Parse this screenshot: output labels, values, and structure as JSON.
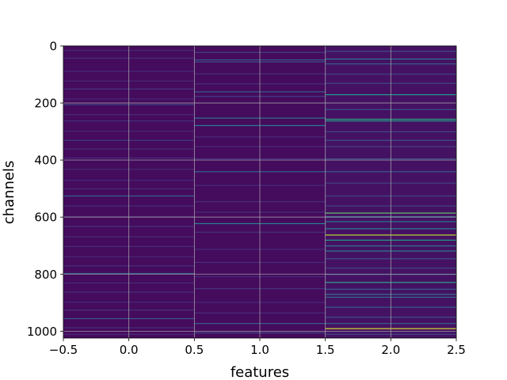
{
  "chart_data": {
    "type": "heatmap",
    "title": "",
    "xlabel": "features",
    "ylabel": "channels",
    "xlim": [
      -0.5,
      2.5
    ],
    "ylim": [
      1024,
      0
    ],
    "xticks": [
      "−0.5",
      "0.0",
      "0.5",
      "1.0",
      "1.5",
      "2.0",
      "2.5"
    ],
    "xtick_values": [
      -0.5,
      0.0,
      0.5,
      1.0,
      1.5,
      2.0,
      2.5
    ],
    "yticks": [
      "0",
      "200",
      "400",
      "600",
      "800",
      "1000"
    ],
    "ytick_values": [
      0,
      200,
      400,
      600,
      800,
      1000
    ],
    "grid": true,
    "colormap": "viridis",
    "background_color": "#440154",
    "columns": [
      {
        "feature": 0,
        "base": 0.03,
        "bright_rows": [
          {
            "channel": 15,
            "value": 0.12
          },
          {
            "channel": 42,
            "value": 0.15
          },
          {
            "channel": 88,
            "value": 0.13
          },
          {
            "channel": 122,
            "value": 0.12
          },
          {
            "channel": 150,
            "value": 0.16
          },
          {
            "channel": 185,
            "value": 0.12
          },
          {
            "channel": 205,
            "value": 0.22
          },
          {
            "channel": 240,
            "value": 0.13
          },
          {
            "channel": 262,
            "value": 0.15
          },
          {
            "channel": 298,
            "value": 0.12
          },
          {
            "channel": 330,
            "value": 0.18
          },
          {
            "channel": 360,
            "value": 0.13
          },
          {
            "channel": 392,
            "value": 0.14
          },
          {
            "channel": 432,
            "value": 0.12
          },
          {
            "channel": 470,
            "value": 0.13
          },
          {
            "channel": 500,
            "value": 0.13
          },
          {
            "channel": 525,
            "value": 0.32
          },
          {
            "channel": 560,
            "value": 0.13
          },
          {
            "channel": 598,
            "value": 0.14
          },
          {
            "channel": 632,
            "value": 0.16
          },
          {
            "channel": 668,
            "value": 0.13
          },
          {
            "channel": 702,
            "value": 0.14
          },
          {
            "channel": 738,
            "value": 0.12
          },
          {
            "channel": 770,
            "value": 0.15
          },
          {
            "channel": 797,
            "value": 0.38
          },
          {
            "channel": 830,
            "value": 0.13
          },
          {
            "channel": 862,
            "value": 0.15
          },
          {
            "channel": 897,
            "value": 0.13
          },
          {
            "channel": 925,
            "value": 0.16
          },
          {
            "channel": 955,
            "value": 0.28
          },
          {
            "channel": 987,
            "value": 0.14
          },
          {
            "channel": 1010,
            "value": 0.12
          }
        ]
      },
      {
        "feature": 1,
        "base": 0.03,
        "bright_rows": [
          {
            "channel": 22,
            "value": 0.2
          },
          {
            "channel": 48,
            "value": 0.28
          },
          {
            "channel": 55,
            "value": 0.25
          },
          {
            "channel": 97,
            "value": 0.14
          },
          {
            "channel": 132,
            "value": 0.15
          },
          {
            "channel": 160,
            "value": 0.3
          },
          {
            "channel": 176,
            "value": 0.2
          },
          {
            "channel": 252,
            "value": 0.4
          },
          {
            "channel": 278,
            "value": 0.42
          },
          {
            "channel": 318,
            "value": 0.14
          },
          {
            "channel": 352,
            "value": 0.13
          },
          {
            "channel": 395,
            "value": 0.15
          },
          {
            "channel": 440,
            "value": 0.34
          },
          {
            "channel": 488,
            "value": 0.13
          },
          {
            "channel": 545,
            "value": 0.15
          },
          {
            "channel": 582,
            "value": 0.13
          },
          {
            "channel": 622,
            "value": 0.45
          },
          {
            "channel": 652,
            "value": 0.15
          },
          {
            "channel": 712,
            "value": 0.13
          },
          {
            "channel": 758,
            "value": 0.14
          },
          {
            "channel": 808,
            "value": 0.13
          },
          {
            "channel": 850,
            "value": 0.15
          },
          {
            "channel": 898,
            "value": 0.13
          },
          {
            "channel": 935,
            "value": 0.14
          },
          {
            "channel": 972,
            "value": 0.3
          },
          {
            "channel": 1005,
            "value": 0.22
          }
        ]
      },
      {
        "feature": 2,
        "base": 0.05,
        "bright_rows": [
          {
            "channel": 18,
            "value": 0.25
          },
          {
            "channel": 45,
            "value": 0.4
          },
          {
            "channel": 62,
            "value": 0.3
          },
          {
            "channel": 98,
            "value": 0.2
          },
          {
            "channel": 130,
            "value": 0.22
          },
          {
            "channel": 170,
            "value": 0.55
          },
          {
            "channel": 222,
            "value": 0.25
          },
          {
            "channel": 256,
            "value": 0.62
          },
          {
            "channel": 262,
            "value": 0.55
          },
          {
            "channel": 300,
            "value": 0.22
          },
          {
            "channel": 330,
            "value": 0.25
          },
          {
            "channel": 352,
            "value": 0.2
          },
          {
            "channel": 395,
            "value": 0.25
          },
          {
            "channel": 440,
            "value": 0.3
          },
          {
            "channel": 480,
            "value": 0.2
          },
          {
            "channel": 525,
            "value": 0.22
          },
          {
            "channel": 560,
            "value": 0.2
          },
          {
            "channel": 585,
            "value": 0.75
          },
          {
            "channel": 598,
            "value": 0.5
          },
          {
            "channel": 615,
            "value": 0.4
          },
          {
            "channel": 640,
            "value": 0.45
          },
          {
            "channel": 662,
            "value": 0.9
          },
          {
            "channel": 680,
            "value": 0.55
          },
          {
            "channel": 700,
            "value": 0.4
          },
          {
            "channel": 718,
            "value": 0.45
          },
          {
            "channel": 745,
            "value": 0.25
          },
          {
            "channel": 778,
            "value": 0.22
          },
          {
            "channel": 800,
            "value": 0.25
          },
          {
            "channel": 828,
            "value": 0.6
          },
          {
            "channel": 852,
            "value": 0.3
          },
          {
            "channel": 870,
            "value": 0.4
          },
          {
            "channel": 880,
            "value": 0.35
          },
          {
            "channel": 915,
            "value": 0.3
          },
          {
            "channel": 950,
            "value": 0.25
          },
          {
            "channel": 972,
            "value": 0.3
          },
          {
            "channel": 990,
            "value": 0.95
          },
          {
            "channel": 1010,
            "value": 0.22
          }
        ]
      }
    ]
  }
}
